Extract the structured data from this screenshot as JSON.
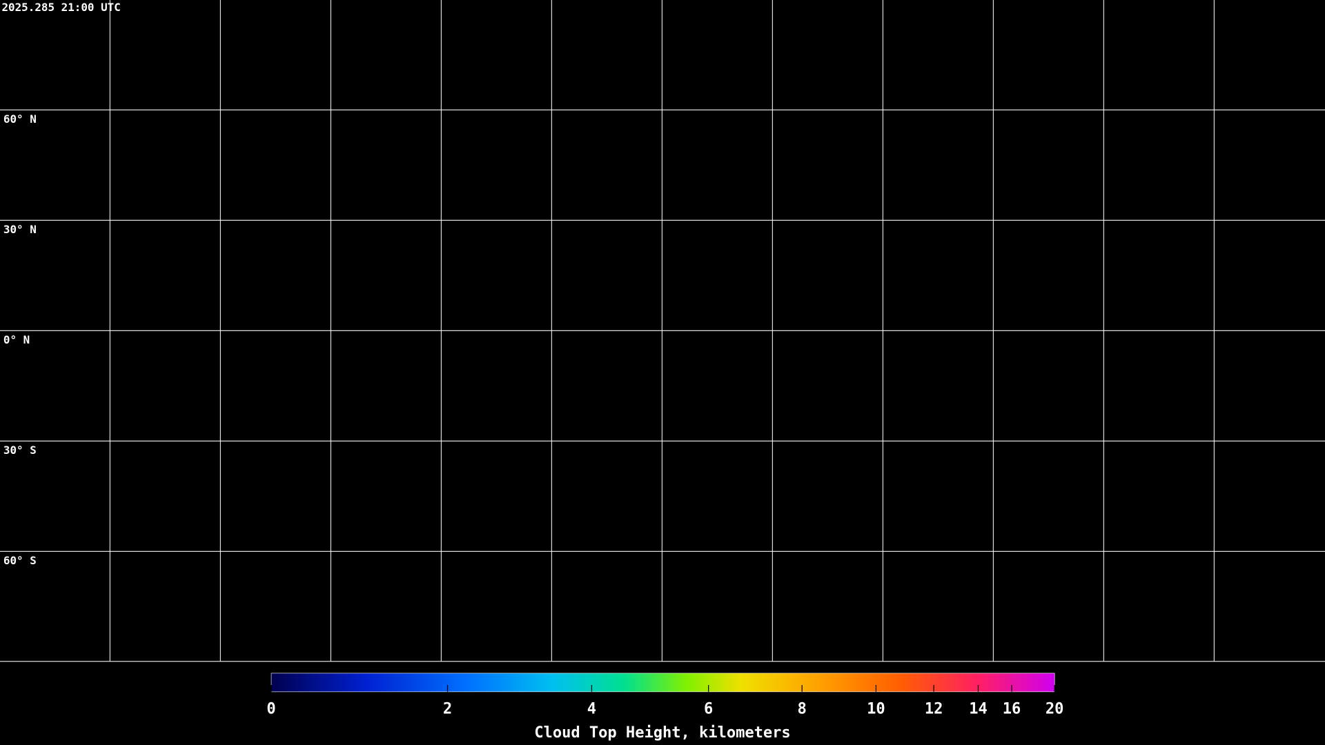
{
  "header": {
    "timestamp": "2025.285 21:00 UTC"
  },
  "map": {
    "latitude_labels": [
      "60° N",
      "30° N",
      "0° N",
      "30° S",
      "60° S"
    ]
  },
  "colorbar": {
    "label": "Cloud Top Height, kilometers",
    "lim": [
      0,
      20
    ],
    "ticks": [
      0,
      2,
      4,
      6,
      8,
      10,
      12,
      14,
      16,
      20
    ]
  }
}
